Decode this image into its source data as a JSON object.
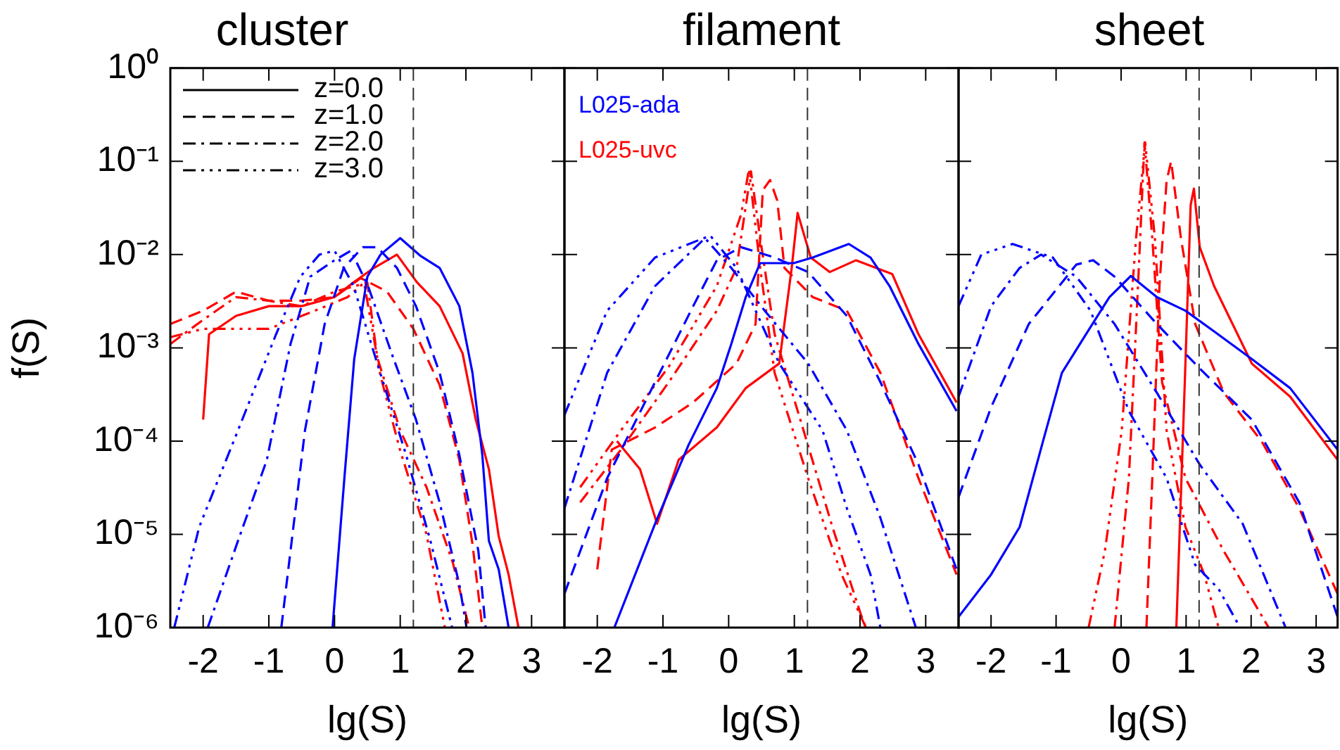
{
  "chart_data": [
    {
      "type": "line",
      "title": "cluster",
      "xlabel": "lg(S)",
      "ylabel": "f(S)",
      "log": "y",
      "xlim": [
        -2.5,
        3.5
      ],
      "xticks": [
        -2,
        -1,
        0,
        1,
        2,
        3
      ],
      "ylim": [
        1e-06,
        1
      ],
      "yticks": [
        {
          "value": 1,
          "label": "10⁰"
        },
        {
          "value": 0.1,
          "label": "10⁻¹"
        },
        {
          "value": 0.01,
          "label": "10⁻²"
        },
        {
          "value": 0.001,
          "label": "10⁻³"
        },
        {
          "value": 0.0001,
          "label": "10⁻⁴"
        },
        {
          "value": 1e-05,
          "label": "10⁻⁵"
        },
        {
          "value": 1e-06,
          "label": "10⁻⁶"
        }
      ],
      "ref_lines": [
        {
          "axis": "x",
          "value": 1.2,
          "color": "#333333",
          "line_style": "dashed"
        }
      ],
      "annotations": [
        "z=0.0",
        "z=1.0",
        "z=2.0",
        "z=3.0"
      ],
      "series": [
        {
          "color": "#0000ff",
          "line_style": "solid",
          "x": [
            -0.03,
            0.15,
            0.3,
            0.5,
            0.7,
            1.0,
            1.3,
            1.6,
            1.9,
            2.1,
            2.25,
            2.35,
            2.5,
            2.65
          ],
          "values": [
            1e-06,
            4e-05,
            0.00076,
            0.0058,
            0.01,
            0.015,
            0.0098,
            0.0072,
            0.0028,
            0.00054,
            7.1e-05,
            8.5e-06,
            4.2e-06,
            1e-06
          ]
        },
        {
          "color": "#0000ff",
          "line_style": "dashed",
          "x": [
            -0.81,
            -0.45,
            -0.15,
            0.14,
            0.43,
            0.65,
            0.95,
            1.24,
            1.6,
            1.9,
            2.19,
            2.3
          ],
          "values": [
            1e-06,
            0.00013,
            0.0018,
            0.0072,
            0.012,
            0.012,
            0.0072,
            0.0028,
            0.00054,
            7.1e-05,
            6.6e-06,
            1e-06
          ]
        },
        {
          "color": "#0000ff",
          "line_style": "dashdot",
          "x": [
            -1.93,
            -1.47,
            -1.03,
            -0.67,
            -0.37,
            0,
            0.25,
            0.51,
            0.87,
            1.24,
            1.6,
            1.9,
            2.01
          ],
          "values": [
            1e-06,
            8.5e-06,
            6.3e-05,
            0.0011,
            0.0058,
            0.0087,
            0.011,
            0.0046,
            0.00087,
            0.00017,
            2.2e-05,
            2.9e-06,
            1e-06
          ]
        },
        {
          "color": "#0000ff",
          "line_style": "dashdotdot",
          "x": [
            -2.44,
            -2.06,
            -1.47,
            -0.89,
            -0.52,
            -0.23,
            0,
            0.29,
            0.65,
            1.09,
            1.46,
            1.79
          ],
          "values": [
            1e-06,
            1.2e-05,
            0.00013,
            0.0014,
            0.0058,
            0.01,
            0.011,
            0.0046,
            0.00068,
            7.1e-05,
            8.5e-06,
            1e-06
          ]
        },
        {
          "color": "#ff0000",
          "line_style": "solid",
          "x": [
            -2,
            -1.91,
            -1.5,
            -1,
            -0.5,
            0,
            0.3,
            0.6,
            0.95,
            1.25,
            1.6,
            1.95,
            2.15,
            2.35,
            2.5,
            2.65,
            2.8
          ],
          "values": [
            0.00017,
            0.0014,
            0.0022,
            0.0028,
            0.0028,
            0.0035,
            0.0051,
            0.0072,
            0.01,
            0.0051,
            0.0028,
            0.00087,
            0.00017,
            5e-05,
            9.5e-06,
            3.7e-06,
            1e-06
          ]
        },
        {
          "color": "#ff0000",
          "line_style": "dashed",
          "x": [
            -2.5,
            -2,
            -1.5,
            -1,
            -0.5,
            0,
            0.4,
            0.8,
            1.2,
            1.6,
            1.9,
            2.1,
            2.25
          ],
          "values": [
            0.0018,
            0.0025,
            0.004,
            0.0032,
            0.0032,
            0.0035,
            0.0056,
            0.004,
            0.0016,
            0.0004,
            6.3e-05,
            7.9e-06,
            1e-06
          ]
        },
        {
          "color": "#ff0000",
          "line_style": "dashdot",
          "x": [
            -2.5,
            -2,
            -1.5,
            -1,
            -0.5,
            0,
            0.5,
            0.65,
            1.0,
            1.4,
            1.8,
            2.05
          ],
          "values": [
            0.0011,
            0.002,
            0.0035,
            0.0032,
            0.0028,
            0.004,
            0.005,
            0.00079,
            0.00013,
            3.2e-05,
            5e-06,
            1e-06
          ]
        },
        {
          "color": "#ff0000",
          "line_style": "dashdotdot",
          "x": [
            -2.5,
            -2,
            -1,
            -0.3,
            0.2,
            0.45,
            0.7,
            1.0,
            1.4,
            1.68
          ],
          "values": [
            0.0013,
            0.0016,
            0.0016,
            0.0025,
            0.0035,
            0.005,
            0.0005,
            7.9e-05,
            1e-05,
            1e-06
          ]
        }
      ]
    },
    {
      "type": "line",
      "title": "filament",
      "xlabel": "lg(S)",
      "log": "y",
      "tick_labels": "x",
      "xlim": [
        -2.5,
        3.5
      ],
      "xticks": [
        -2,
        -1,
        0,
        1,
        2,
        3
      ],
      "ylim": [
        1e-06,
        1
      ],
      "yticks": [
        1,
        0.1,
        0.01,
        0.001,
        0.0001,
        1e-05,
        1e-06
      ],
      "ref_lines": [
        {
          "axis": "x",
          "value": 1.2,
          "color": "#333333",
          "line_style": "dashed"
        }
      ],
      "annotations": [
        "L025-ada",
        "L025-uvc"
      ],
      "series": [
        {
          "color": "#0000ff",
          "line_style": "solid",
          "x": [
            -1.74,
            -1.12,
            -0.61,
            -0.18,
            0.04,
            0.26,
            0.48,
            0.99,
            1.28,
            1.83,
            2.16,
            2.45,
            2.89,
            3.47
          ],
          "values": [
            1e-06,
            1.3e-05,
            9.1e-05,
            0.00037,
            0.0011,
            0.0035,
            0.0081,
            0.0081,
            0.0093,
            0.013,
            0.0093,
            0.0046,
            0.0011,
            0.00021
          ]
        },
        {
          "color": "#0000ff",
          "line_style": "dashed",
          "x": [
            -2.5,
            -1.85,
            -1.12,
            -0.54,
            -0.18,
            0.19,
            0.7,
            1.21,
            1.8,
            2.31,
            2.89,
            3.47
          ],
          "values": [
            2.3e-06,
            4e-05,
            0.00043,
            0.0028,
            0.0087,
            0.012,
            0.0093,
            0.0065,
            0.0022,
            0.00043,
            5.6e-05,
            4.2e-06
          ]
        },
        {
          "color": "#0000ff",
          "line_style": "dashdot",
          "x": [
            -2.5,
            -1.85,
            -1.12,
            -0.36,
            0.04,
            0.55,
            1.21,
            1.8,
            2.31,
            2.85
          ],
          "values": [
            1.9e-05,
            0.00054,
            0.0046,
            0.015,
            0.0072,
            0.0025,
            0.00068,
            0.00013,
            1.5e-05,
            1e-06
          ]
        },
        {
          "color": "#0000ff",
          "line_style": "dashdotdot",
          "x": [
            -2.5,
            -1.85,
            -1.12,
            -0.28,
            0.12,
            0.77,
            1.43,
            1.8,
            2.16,
            2.31
          ],
          "values": [
            0.00019,
            0.0025,
            0.0093,
            0.016,
            0.0072,
            0.00068,
            0.00013,
            1.9e-05,
            3.7e-06,
            1e-06
          ]
        },
        {
          "color": "#ff0000",
          "line_style": "solid",
          "x": [
            -1.7,
            -1.35,
            -1.09,
            -0.76,
            -0.18,
            0.26,
            0.77,
            0.96,
            1.05,
            1.25,
            1.54,
            1.94,
            2.49,
            2.89,
            3.47
          ],
          "values": [
            0.0001,
            5e-05,
            1.3e-05,
            6.3e-05,
            0.00014,
            0.00037,
            0.00068,
            0.0072,
            0.028,
            0.0093,
            0.0065,
            0.0087,
            0.0062,
            0.0014,
            0.00026
          ]
        },
        {
          "color": "#ff0000",
          "line_style": "dashed",
          "x": [
            -2,
            -1.78,
            -1.12,
            -0.54,
            0.12,
            0.41,
            0.52,
            0.63,
            0.74,
            0.85,
            1.28,
            1.8,
            2.31,
            2.89,
            3.47
          ],
          "values": [
            4.2e-06,
            8.1e-05,
            0.00014,
            0.00026,
            0.00068,
            0.0018,
            0.049,
            0.063,
            0.038,
            0.0072,
            0.0035,
            0.0025,
            0.00054,
            4e-05,
            3.7e-06
          ]
        },
        {
          "color": "#ff0000",
          "line_style": "dashdot",
          "x": [
            -2.26,
            -1.64,
            -0.91,
            -0.18,
            0.12,
            0.34,
            0.48,
            0.7,
            1.14,
            1.58,
            2.01,
            2.09
          ],
          "values": [
            2.2e-05,
            8.1e-05,
            0.00043,
            0.0025,
            0.0072,
            0.078,
            0.015,
            0.0014,
            0.00013,
            1.2e-05,
            1.4e-06,
            1e-06
          ]
        },
        {
          "color": "#ff0000",
          "line_style": "dashdotdot",
          "x": [
            -2.26,
            -1.64,
            -0.91,
            -0.18,
            0.19,
            0.31,
            0.48,
            0.7,
            1.21,
            1.72,
            2.09
          ],
          "values": [
            3.2e-05,
            0.00013,
            0.00063,
            0.0046,
            0.027,
            0.083,
            0.0072,
            0.00054,
            4e-05,
            3.7e-06,
            1e-06
          ]
        }
      ]
    },
    {
      "type": "line",
      "title": "sheet",
      "xlabel": "lg(S)",
      "log": "y",
      "tick_labels": "x",
      "xlim": [
        -2.5,
        3.33
      ],
      "xticks": [
        -2,
        -1,
        0,
        1,
        2,
        3
      ],
      "ylim": [
        1e-06,
        1
      ],
      "yticks": [
        1,
        0.1,
        0.01,
        0.001,
        0.0001,
        1e-05,
        1e-06
      ],
      "ref_lines": [
        {
          "axis": "x",
          "value": 1.2,
          "color": "#333333",
          "line_style": "dashed"
        }
      ],
      "series": [
        {
          "color": "#0000ff",
          "line_style": "solid",
          "x": [
            -2.5,
            -2,
            -1.56,
            -1.2,
            -0.91,
            -0.54,
            -0.18,
            0.15,
            0.55,
            0.99,
            1.43,
            2.01,
            2.6,
            3.33
          ],
          "values": [
            1.3e-06,
            3.7e-06,
            1.2e-05,
            0.0001,
            0.00054,
            0.0014,
            0.0035,
            0.0059,
            0.0035,
            0.0025,
            0.0015,
            0.00076,
            0.00037,
            8.1e-05
          ]
        },
        {
          "color": "#0000ff",
          "line_style": "dashed",
          "x": [
            -2.5,
            -2,
            -1.42,
            -0.69,
            -0.43,
            -0.1,
            0.55,
            1.21,
            2.01,
            2.74,
            3.33
          ],
          "values": [
            2.5e-05,
            0.00023,
            0.0018,
            0.0078,
            0.0087,
            0.0058,
            0.0018,
            0.0006,
            0.00017,
            2.2e-05,
            1.3e-06
          ]
        },
        {
          "color": "#0000ff",
          "line_style": "dashdot",
          "x": [
            -2.5,
            -2,
            -1.56,
            -1.23,
            -0.69,
            -0.1,
            0.55,
            1.21,
            1.87,
            2.53
          ],
          "values": [
            0.0003,
            0.0028,
            0.0072,
            0.01,
            0.0058,
            0.0018,
            0.00033,
            5.6e-05,
            1.3e-05,
            1e-06
          ]
        },
        {
          "color": "#0000ff",
          "line_style": "dashdotdot",
          "x": [
            -2.5,
            -2.15,
            -1.67,
            -1.05,
            -0.47,
            0.12,
            0.7,
            1.14,
            1.5,
            1.83
          ],
          "values": [
            0.0028,
            0.01,
            0.013,
            0.0093,
            0.0025,
            0.00021,
            4e-05,
            4.7e-06,
            2.6e-06,
            1e-06
          ]
        },
        {
          "color": "#ff0000",
          "line_style": "solid",
          "x": [
            0.85,
            0.98,
            1.07,
            1.12,
            1.21,
            1.43,
            2.01,
            2.6,
            3.33
          ],
          "values": [
            1e-06,
            0.00043,
            0.034,
            0.051,
            0.012,
            0.0046,
            0.00068,
            0.0003,
            6.3e-05
          ]
        },
        {
          "color": "#ff0000",
          "line_style": "dashed",
          "x": [
            0.39,
            0.48,
            0.59,
            0.7,
            0.77,
            0.92,
            1.14,
            1.58,
            2.16,
            2.74,
            3.33
          ],
          "values": [
            1e-06,
            4e-05,
            0.0046,
            0.062,
            0.1,
            0.015,
            0.0018,
            0.00033,
            0.0001,
            1.9e-05,
            2.3e-06
          ]
        },
        {
          "color": "#ff0000",
          "line_style": "dashdot",
          "x": [
            -0.1,
            0.12,
            0.26,
            0.36,
            0.48,
            0.63,
            0.99,
            1.58,
            2.27
          ],
          "values": [
            1e-06,
            4e-05,
            0.0046,
            0.16,
            0.015,
            0.00043,
            4e-05,
            6.6e-06,
            1e-06
          ]
        },
        {
          "color": "#ff0000",
          "line_style": "dashdotdot",
          "x": [
            -0.5,
            -0.25,
            0.01,
            0.23,
            0.37,
            0.52,
            0.7,
            0.99,
            1.28,
            1.5
          ],
          "values": [
            1e-06,
            6.6e-06,
            0.00013,
            0.015,
            0.16,
            0.015,
            0.00013,
            1.2e-05,
            3.7e-06,
            1e-06
          ]
        }
      ]
    }
  ]
}
